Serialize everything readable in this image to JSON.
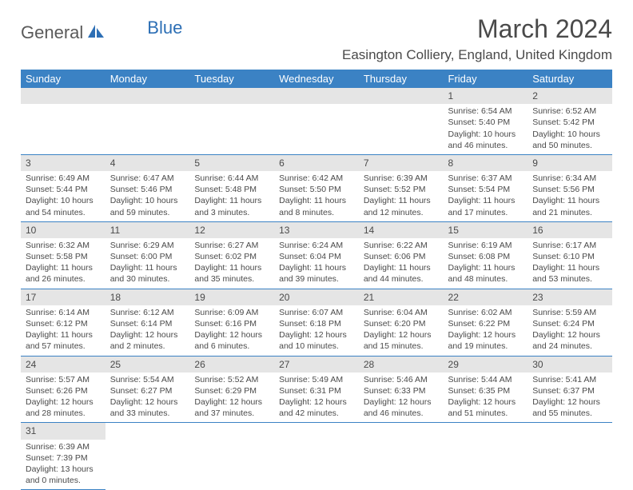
{
  "logo": {
    "text1": "General",
    "text2": "Blue"
  },
  "title": "March 2024",
  "location": "Easington Colliery, England, United Kingdom",
  "colors": {
    "header_bg": "#3b82c4",
    "header_text": "#ffffff",
    "daynum_bg": "#e5e5e5",
    "border": "#3b82c4",
    "text": "#4a4a4a"
  },
  "dayHeaders": [
    "Sunday",
    "Monday",
    "Tuesday",
    "Wednesday",
    "Thursday",
    "Friday",
    "Saturday"
  ],
  "weeks": [
    [
      null,
      null,
      null,
      null,
      null,
      {
        "n": "1",
        "sr": "6:54 AM",
        "ss": "5:40 PM",
        "dl": "10 hours and 46 minutes."
      },
      {
        "n": "2",
        "sr": "6:52 AM",
        "ss": "5:42 PM",
        "dl": "10 hours and 50 minutes."
      }
    ],
    [
      {
        "n": "3",
        "sr": "6:49 AM",
        "ss": "5:44 PM",
        "dl": "10 hours and 54 minutes."
      },
      {
        "n": "4",
        "sr": "6:47 AM",
        "ss": "5:46 PM",
        "dl": "10 hours and 59 minutes."
      },
      {
        "n": "5",
        "sr": "6:44 AM",
        "ss": "5:48 PM",
        "dl": "11 hours and 3 minutes."
      },
      {
        "n": "6",
        "sr": "6:42 AM",
        "ss": "5:50 PM",
        "dl": "11 hours and 8 minutes."
      },
      {
        "n": "7",
        "sr": "6:39 AM",
        "ss": "5:52 PM",
        "dl": "11 hours and 12 minutes."
      },
      {
        "n": "8",
        "sr": "6:37 AM",
        "ss": "5:54 PM",
        "dl": "11 hours and 17 minutes."
      },
      {
        "n": "9",
        "sr": "6:34 AM",
        "ss": "5:56 PM",
        "dl": "11 hours and 21 minutes."
      }
    ],
    [
      {
        "n": "10",
        "sr": "6:32 AM",
        "ss": "5:58 PM",
        "dl": "11 hours and 26 minutes."
      },
      {
        "n": "11",
        "sr": "6:29 AM",
        "ss": "6:00 PM",
        "dl": "11 hours and 30 minutes."
      },
      {
        "n": "12",
        "sr": "6:27 AM",
        "ss": "6:02 PM",
        "dl": "11 hours and 35 minutes."
      },
      {
        "n": "13",
        "sr": "6:24 AM",
        "ss": "6:04 PM",
        "dl": "11 hours and 39 minutes."
      },
      {
        "n": "14",
        "sr": "6:22 AM",
        "ss": "6:06 PM",
        "dl": "11 hours and 44 minutes."
      },
      {
        "n": "15",
        "sr": "6:19 AM",
        "ss": "6:08 PM",
        "dl": "11 hours and 48 minutes."
      },
      {
        "n": "16",
        "sr": "6:17 AM",
        "ss": "6:10 PM",
        "dl": "11 hours and 53 minutes."
      }
    ],
    [
      {
        "n": "17",
        "sr": "6:14 AM",
        "ss": "6:12 PM",
        "dl": "11 hours and 57 minutes."
      },
      {
        "n": "18",
        "sr": "6:12 AM",
        "ss": "6:14 PM",
        "dl": "12 hours and 2 minutes."
      },
      {
        "n": "19",
        "sr": "6:09 AM",
        "ss": "6:16 PM",
        "dl": "12 hours and 6 minutes."
      },
      {
        "n": "20",
        "sr": "6:07 AM",
        "ss": "6:18 PM",
        "dl": "12 hours and 10 minutes."
      },
      {
        "n": "21",
        "sr": "6:04 AM",
        "ss": "6:20 PM",
        "dl": "12 hours and 15 minutes."
      },
      {
        "n": "22",
        "sr": "6:02 AM",
        "ss": "6:22 PM",
        "dl": "12 hours and 19 minutes."
      },
      {
        "n": "23",
        "sr": "5:59 AM",
        "ss": "6:24 PM",
        "dl": "12 hours and 24 minutes."
      }
    ],
    [
      {
        "n": "24",
        "sr": "5:57 AM",
        "ss": "6:26 PM",
        "dl": "12 hours and 28 minutes."
      },
      {
        "n": "25",
        "sr": "5:54 AM",
        "ss": "6:27 PM",
        "dl": "12 hours and 33 minutes."
      },
      {
        "n": "26",
        "sr": "5:52 AM",
        "ss": "6:29 PM",
        "dl": "12 hours and 37 minutes."
      },
      {
        "n": "27",
        "sr": "5:49 AM",
        "ss": "6:31 PM",
        "dl": "12 hours and 42 minutes."
      },
      {
        "n": "28",
        "sr": "5:46 AM",
        "ss": "6:33 PM",
        "dl": "12 hours and 46 minutes."
      },
      {
        "n": "29",
        "sr": "5:44 AM",
        "ss": "6:35 PM",
        "dl": "12 hours and 51 minutes."
      },
      {
        "n": "30",
        "sr": "5:41 AM",
        "ss": "6:37 PM",
        "dl": "12 hours and 55 minutes."
      }
    ],
    [
      {
        "n": "31",
        "sr": "6:39 AM",
        "ss": "7:39 PM",
        "dl": "13 hours and 0 minutes."
      },
      null,
      null,
      null,
      null,
      null,
      null
    ]
  ],
  "labels": {
    "sunrise": "Sunrise: ",
    "sunset": "Sunset: ",
    "daylight": "Daylight: "
  }
}
